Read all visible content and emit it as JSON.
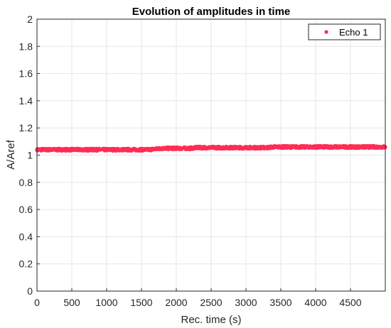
{
  "chart_data": {
    "type": "scatter",
    "title": "Evolution of amplitudes in time",
    "xlabel": "Rec. time (s)",
    "ylabel": "A/Aref",
    "xlim": [
      0,
      5000
    ],
    "ylim": [
      0,
      2
    ],
    "xticks": [
      "0",
      "500",
      "1000",
      "1500",
      "2000",
      "2500",
      "3000",
      "3500",
      "4000",
      "4500"
    ],
    "yticks": [
      "0",
      "0.2",
      "0.4",
      "0.6",
      "0.8",
      "1",
      "1.2",
      "1.4",
      "1.6",
      "1.8",
      "2"
    ],
    "grid": true,
    "legend_position": "top-right",
    "series": [
      {
        "name": "Echo 1",
        "color": "#ff2d55",
        "marker": "dot",
        "x": [
          0,
          100,
          200,
          300,
          400,
          500,
          600,
          700,
          800,
          900,
          1000,
          1100,
          1200,
          1300,
          1400,
          1500,
          1600,
          1700,
          1800,
          1900,
          2000,
          2100,
          2200,
          2300,
          2400,
          2500,
          2600,
          2700,
          2800,
          2900,
          3000,
          3100,
          3200,
          3300,
          3400,
          3500,
          3600,
          3700,
          3800,
          3900,
          4000,
          4100,
          4200,
          4300,
          4400,
          4500,
          4600,
          4700,
          4800,
          4900,
          5000
        ],
        "y": [
          1.04,
          1.04,
          1.04,
          1.04,
          1.04,
          1.04,
          1.04,
          1.04,
          1.04,
          1.04,
          1.04,
          1.04,
          1.04,
          1.04,
          1.04,
          1.04,
          1.04,
          1.045,
          1.05,
          1.05,
          1.05,
          1.05,
          1.05,
          1.055,
          1.055,
          1.055,
          1.055,
          1.055,
          1.055,
          1.055,
          1.055,
          1.055,
          1.055,
          1.055,
          1.06,
          1.06,
          1.06,
          1.06,
          1.06,
          1.06,
          1.06,
          1.06,
          1.06,
          1.06,
          1.06,
          1.06,
          1.06,
          1.06,
          1.06,
          1.06,
          1.06
        ]
      }
    ]
  }
}
